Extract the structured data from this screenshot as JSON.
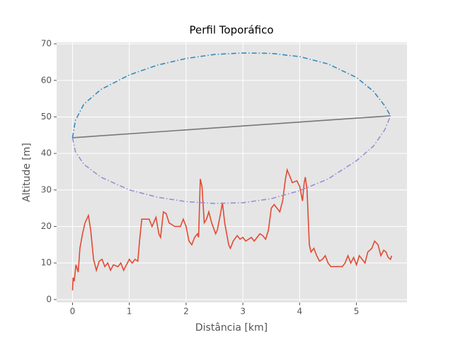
{
  "chart_data": {
    "type": "line",
    "title": "Perfil Toporáfico",
    "xlabel": "Distância [km]",
    "ylabel": "Altitude [m]",
    "xlim": [
      -0.28,
      5.89
    ],
    "ylim": [
      -0.8,
      70.4
    ],
    "xticks": [
      0,
      1,
      2,
      3,
      4,
      5
    ],
    "yticks": [
      0,
      10,
      20,
      30,
      40,
      50,
      60,
      70
    ],
    "grid": true,
    "background": "#e5e5e5",
    "series": [
      {
        "color": "#e24a33",
        "dash": "solid",
        "x": [
          0,
          0.01,
          0.03,
          0.06,
          0.1,
          0.13,
          0.17,
          0.22,
          0.28,
          0.32,
          0.37,
          0.42,
          0.47,
          0.52,
          0.57,
          0.62,
          0.67,
          0.72,
          0.8,
          0.85,
          0.9,
          0.95,
          1.0,
          1.05,
          1.1,
          1.15,
          1.18,
          1.22,
          1.3,
          1.35,
          1.4,
          1.47,
          1.52,
          1.55,
          1.6,
          1.65,
          1.7,
          1.8,
          1.9,
          1.95,
          2.0,
          2.05,
          2.1,
          2.15,
          2.2,
          2.22,
          2.25,
          2.28,
          2.32,
          2.36,
          2.4,
          2.45,
          2.52,
          2.55,
          2.6,
          2.64,
          2.68,
          2.75,
          2.78,
          2.83,
          2.9,
          2.95,
          3.0,
          3.05,
          3.15,
          3.2,
          3.3,
          3.35,
          3.4,
          3.45,
          3.5,
          3.55,
          3.6,
          3.65,
          3.7,
          3.75,
          3.78,
          3.82,
          3.87,
          3.95,
          4.0,
          4.05,
          4.08,
          4.1,
          4.13,
          4.17,
          4.2,
          4.25,
          4.3,
          4.35,
          4.4,
          4.45,
          4.5,
          4.55,
          4.75,
          4.8,
          4.85,
          4.9,
          4.95,
          5.0,
          5.05,
          5.1,
          5.15,
          5.2,
          5.27,
          5.32,
          5.38,
          5.43,
          5.48,
          5.52,
          5.56,
          5.6,
          5.62
        ],
        "values": [
          2.5,
          6,
          5,
          9.5,
          7.5,
          14,
          17.5,
          21,
          23,
          19,
          11,
          8,
          10.5,
          11,
          9,
          10,
          8,
          9.5,
          9,
          10,
          8,
          9.5,
          11,
          10,
          11,
          10.5,
          16,
          22,
          22,
          22,
          20,
          22.5,
          18,
          17,
          24,
          23.5,
          21,
          20,
          20,
          22,
          20,
          16,
          15,
          17,
          18,
          17,
          33,
          31,
          21,
          22,
          24,
          21,
          18,
          19,
          23,
          26.5,
          21,
          15,
          14,
          16,
          17.5,
          16.5,
          17,
          16,
          17,
          16,
          18,
          17.5,
          16.5,
          19,
          25,
          26,
          25,
          24,
          27,
          33,
          35.5,
          34,
          32,
          32.5,
          31,
          27,
          32,
          33.5,
          30,
          15,
          13,
          14,
          12,
          10.5,
          11,
          12,
          10,
          9,
          9,
          10,
          12,
          10,
          11.5,
          9.5,
          12,
          11,
          10,
          13,
          14,
          16,
          15,
          12,
          13.5,
          13,
          11.5,
          11,
          12
        ]
      },
      {
        "color": "#777777",
        "dash": "solid",
        "x": [
          0,
          5.6
        ],
        "values": [
          44.3,
          50.3
        ]
      },
      {
        "color": "#348abd",
        "dash": "dashdot",
        "x": [
          0,
          0.05,
          0.2,
          0.5,
          1,
          1.5,
          2,
          2.5,
          3,
          3.5,
          4,
          4.5,
          5,
          5.3,
          5.5,
          5.6
        ],
        "values": [
          44.3,
          49,
          53.5,
          57.5,
          61.5,
          64.2,
          66,
          67.1,
          67.5,
          67.4,
          66.5,
          64.5,
          60.8,
          57,
          53,
          50.3
        ]
      },
      {
        "color": "#988ed5",
        "dash": "dashdot",
        "x": [
          0,
          0.05,
          0.2,
          0.5,
          1,
          1.5,
          2,
          2.5,
          3,
          3.5,
          4,
          4.5,
          5,
          5.3,
          5.5,
          5.6
        ],
        "values": [
          44.3,
          40.5,
          37,
          33.5,
          30,
          28,
          26.8,
          26.3,
          26.5,
          27.6,
          29.8,
          33,
          38,
          42,
          46.5,
          50.3
        ]
      }
    ]
  }
}
